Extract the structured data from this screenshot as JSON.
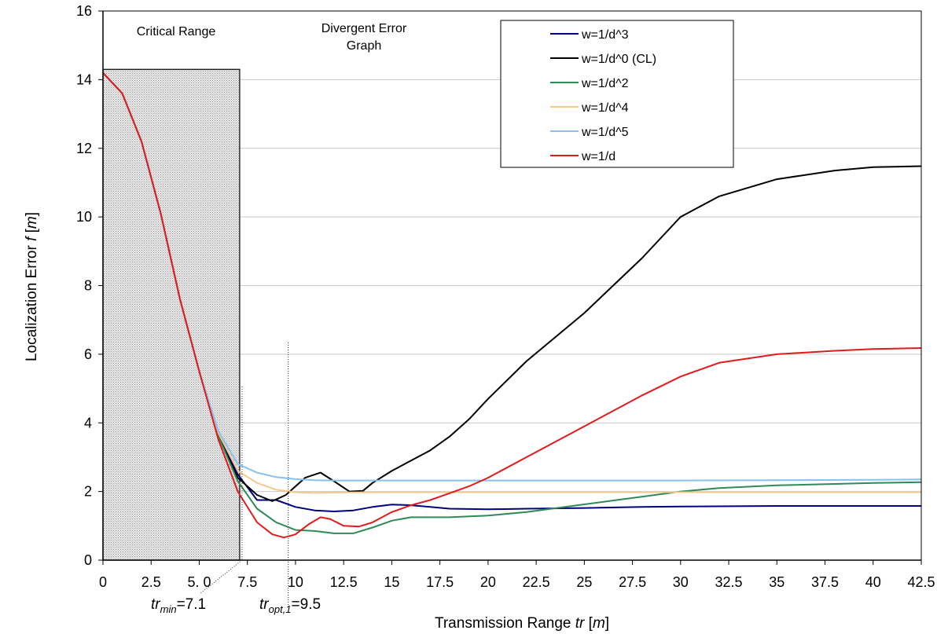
{
  "chart_data": {
    "type": "line",
    "title": "",
    "xlabel": {
      "main": "Transmission Range ",
      "var": "tr",
      "unit_open": " [",
      "unit": "m",
      "unit_close": "]"
    },
    "ylabel": {
      "main": "Localization Error ",
      "var": "f",
      "unit_open": " [",
      "unit": "m",
      "unit_close": "]"
    },
    "xlim": [
      0,
      42.5
    ],
    "ylim": [
      0,
      16
    ],
    "x_ticks": [
      0,
      2.5,
      5.0,
      7.5,
      10,
      12.5,
      15,
      17.5,
      20,
      22.5,
      25,
      27.5,
      30,
      32.5,
      35,
      37.5,
      40,
      42.5
    ],
    "x_tick_labels": [
      "0",
      "2.5",
      "5. 0",
      "7.5",
      "10",
      "12.5",
      "15",
      "17.5",
      "20",
      "22.5",
      "25",
      "27.5",
      "30",
      "32.5",
      "35",
      "37.5",
      "40",
      "42.5"
    ],
    "y_ticks": [
      0,
      2,
      4,
      6,
      8,
      10,
      12,
      14,
      16
    ],
    "y_tick_labels": [
      "0",
      "2",
      "4",
      "6",
      "8",
      "10",
      "12",
      "14",
      "16"
    ],
    "grid": {
      "horizontal": true,
      "vertical": false
    },
    "legend_position": "top-center",
    "regions": [
      {
        "label": "Critical Range",
        "x_start": 0,
        "x_end": 7.1,
        "y_top": 14.3
      }
    ],
    "region_labels": {
      "critical": "Critical Range",
      "divergent_line1": "Divergent Error",
      "divergent_line2": "Graph"
    },
    "annotations": [
      {
        "id": "trmin",
        "var": "tr",
        "sub": "min",
        "text": "=7.1",
        "x": 7.1
      },
      {
        "id": "tropt",
        "var": "tr",
        "sub": "opt,1",
        "text": "=9.5",
        "x": 9.5
      }
    ],
    "series": [
      {
        "name": "w=1/d^3",
        "color": "#000080",
        "x": [
          0,
          1,
          2,
          3,
          4,
          5,
          6,
          7,
          8,
          9,
          10,
          11,
          12,
          13,
          14,
          15,
          16,
          17,
          18,
          20,
          22,
          25,
          28,
          30,
          35,
          40,
          42.5
        ],
        "y": [
          14.2,
          13.6,
          12.2,
          10.1,
          7.6,
          5.5,
          3.6,
          2.5,
          1.75,
          1.75,
          1.55,
          1.45,
          1.42,
          1.45,
          1.55,
          1.62,
          1.6,
          1.55,
          1.5,
          1.48,
          1.5,
          1.52,
          1.55,
          1.56,
          1.58,
          1.58,
          1.58
        ]
      },
      {
        "name": "w=1/d^0 (CL)",
        "color": "#000000",
        "x": [
          0,
          1,
          2,
          3,
          4,
          5,
          6,
          7,
          8,
          8.8,
          9.5,
          10.5,
          11.3,
          12,
          12.8,
          13.5,
          14,
          15,
          16,
          17,
          18,
          19,
          20,
          22,
          25,
          28,
          30,
          32,
          35,
          38,
          40,
          42.5
        ],
        "y": [
          14.2,
          13.6,
          12.2,
          10.1,
          7.6,
          5.5,
          3.6,
          2.4,
          1.9,
          1.72,
          1.9,
          2.4,
          2.55,
          2.3,
          2.0,
          2.02,
          2.25,
          2.6,
          2.9,
          3.2,
          3.6,
          4.1,
          4.7,
          5.8,
          7.2,
          8.8,
          10.0,
          10.6,
          11.1,
          11.35,
          11.45,
          11.48
        ]
      },
      {
        "name": "w=1/d^2",
        "color": "#2e8b57",
        "x": [
          0,
          1,
          2,
          3,
          4,
          5,
          6,
          7,
          8,
          9,
          10,
          11,
          12,
          13,
          14,
          15,
          16,
          17,
          18,
          20,
          22,
          24,
          26,
          28,
          30,
          32,
          35,
          38,
          40,
          42.5
        ],
        "y": [
          14.2,
          13.6,
          12.2,
          10.1,
          7.6,
          5.5,
          3.6,
          2.3,
          1.5,
          1.1,
          0.88,
          0.85,
          0.78,
          0.78,
          0.95,
          1.15,
          1.25,
          1.25,
          1.25,
          1.3,
          1.4,
          1.55,
          1.7,
          1.85,
          2.0,
          2.1,
          2.18,
          2.22,
          2.25,
          2.27
        ]
      },
      {
        "name": "w=1/d^4",
        "color": "#f5c98a",
        "x": [
          0,
          1,
          2,
          3,
          4,
          5,
          6,
          7,
          8,
          9,
          10,
          11,
          12,
          15,
          20,
          25,
          30,
          35,
          40,
          42.5
        ],
        "y": [
          14.2,
          13.6,
          12.2,
          10.1,
          7.6,
          5.5,
          3.7,
          2.6,
          2.25,
          2.05,
          1.98,
          1.96,
          1.97,
          1.98,
          1.98,
          1.98,
          1.98,
          1.98,
          1.98,
          1.98
        ]
      },
      {
        "name": "w=1/d^5",
        "color": "#87c1f0",
        "x": [
          0,
          1,
          2,
          3,
          4,
          5,
          6,
          7,
          8,
          9,
          10,
          11,
          12,
          15,
          20,
          25,
          30,
          35,
          40,
          42.5
        ],
        "y": [
          14.2,
          13.6,
          12.2,
          10.1,
          7.6,
          5.5,
          3.75,
          2.8,
          2.55,
          2.42,
          2.36,
          2.33,
          2.32,
          2.32,
          2.32,
          2.32,
          2.32,
          2.33,
          2.34,
          2.35
        ]
      },
      {
        "name": "w=1/d",
        "color": "#e31a1c",
        "x": [
          0,
          1,
          2,
          3,
          4,
          5,
          6,
          7,
          8,
          8.8,
          9.4,
          10,
          10.7,
          11.3,
          11.8,
          12.5,
          13.3,
          14,
          15,
          16,
          17,
          18,
          19,
          20,
          22,
          25,
          28,
          30,
          32,
          35,
          38,
          40,
          42.5
        ],
        "y": [
          14.2,
          13.6,
          12.2,
          10.1,
          7.6,
          5.5,
          3.5,
          2.0,
          1.1,
          0.75,
          0.66,
          0.75,
          1.05,
          1.25,
          1.2,
          1.0,
          0.98,
          1.1,
          1.4,
          1.6,
          1.75,
          1.95,
          2.15,
          2.4,
          3.0,
          3.9,
          4.8,
          5.35,
          5.75,
          6.0,
          6.1,
          6.15,
          6.18
        ]
      }
    ]
  }
}
